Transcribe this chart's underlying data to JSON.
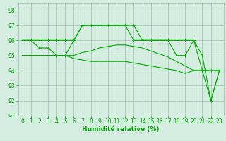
{
  "line1": {
    "x": [
      0,
      1,
      2,
      3,
      4,
      5,
      6,
      7,
      8,
      9,
      10,
      11,
      12,
      13,
      14,
      15,
      16,
      17,
      18,
      19,
      20,
      21,
      22,
      23
    ],
    "y": [
      96,
      96,
      96,
      96,
      96,
      96,
      96,
      97,
      97,
      97,
      97,
      97,
      97,
      97,
      96,
      96,
      96,
      96,
      96,
      96,
      96,
      94,
      94,
      94
    ],
    "has_markers": true
  },
  "line2": {
    "x": [
      0,
      1,
      2,
      3,
      4,
      5,
      6,
      7,
      8,
      9,
      10,
      11,
      12,
      13,
      14,
      15,
      16,
      17,
      18,
      19,
      20,
      21,
      22,
      23
    ],
    "y": [
      96,
      96,
      95.5,
      95.5,
      95,
      95,
      96,
      97,
      97,
      97,
      97,
      97,
      97,
      96,
      96,
      96,
      96,
      96,
      95,
      95,
      96,
      95,
      92,
      94
    ],
    "has_markers": true
  },
  "line3": {
    "x": [
      0,
      1,
      2,
      3,
      4,
      5,
      6,
      7,
      8,
      9,
      10,
      11,
      12,
      13,
      14,
      15,
      16,
      17,
      18,
      19,
      20,
      21,
      22,
      23
    ],
    "y": [
      95,
      95,
      95,
      95,
      95,
      95,
      95,
      95.2,
      95.3,
      95.5,
      95.6,
      95.7,
      95.7,
      95.6,
      95.5,
      95.3,
      95.1,
      94.9,
      94.6,
      94.3,
      94.0,
      94.0,
      94.0,
      94.0
    ],
    "has_markers": false
  },
  "line4": {
    "x": [
      0,
      1,
      2,
      3,
      4,
      5,
      6,
      7,
      8,
      9,
      10,
      11,
      12,
      13,
      14,
      15,
      16,
      17,
      18,
      19,
      20,
      21,
      22,
      23
    ],
    "y": [
      95,
      95,
      95,
      95,
      95,
      95,
      94.8,
      94.7,
      94.6,
      94.6,
      94.6,
      94.6,
      94.6,
      94.5,
      94.4,
      94.3,
      94.2,
      94.1,
      94.0,
      93.8,
      94.0,
      94.0,
      92.0,
      94.0
    ],
    "has_markers": false
  },
  "color": "#00aa00",
  "bg_color": "#d4ede0",
  "grid_color": "#9dbfad",
  "xlabel": "Humidité relative (%)",
  "xlim": [
    -0.5,
    23.5
  ],
  "ylim": [
    91,
    98.5
  ],
  "yticks": [
    91,
    92,
    93,
    94,
    95,
    96,
    97,
    98
  ],
  "xticks": [
    0,
    1,
    2,
    3,
    4,
    5,
    6,
    7,
    8,
    9,
    10,
    11,
    12,
    13,
    14,
    15,
    16,
    17,
    18,
    19,
    20,
    21,
    22,
    23
  ]
}
